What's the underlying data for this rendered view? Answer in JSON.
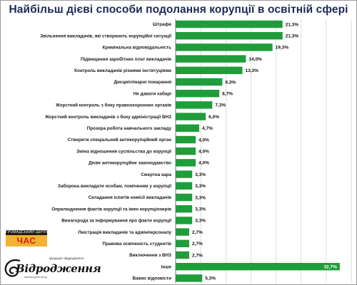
{
  "title": "Найбільш дієві способи подолання корупції в освітній сфері",
  "colors": {
    "bar": "#1f9d3a",
    "grid": "#c8c8c8",
    "title": "#1d2a55",
    "inner_label": "#ffffff"
  },
  "chart_data": {
    "type": "bar",
    "orientation": "horizontal",
    "title": "Найбільш дієві способи подолання корупції в освітній сфері",
    "value_suffix": "%",
    "decimal_separator": ",",
    "xlim": [
      0,
      35
    ],
    "grid": true,
    "categories": [
      "Штрафи",
      "Звільнення викладачів, які створюють корупційні ситуації",
      "Кримінальна відповідальність",
      "Підвищення заробітних плат викладачів",
      "Контроль викладачів різними інституціями",
      "Дисциплінарні покарання",
      "Не давати хабарі",
      "Жорсткий контроль з боку правоохоронних органів",
      "Жорсткий контроль викладачів з боку адміністрації ВНЗ",
      "Прозора робота навчального закладу",
      "Створити спеціальний антикорупційний орган",
      "Зміна відношення суспільства до корупції",
      "Дієве антикорупційне законодавство",
      "Смертна кара",
      "Заборона викладати особам, поміченим у корупції",
      "Складання іспитів комісії викладачів",
      "Оприлюднення фактів корупції та імен корупціонерів",
      "Винагорода за інформування про факти корупції",
      "Люстрація викладачів та адмінперсоналу",
      "Правова освіченість студентів",
      "Виключення з ВНЗ",
      "Інше",
      "Важко відповісти"
    ],
    "values": [
      21.3,
      21.3,
      19.3,
      14.0,
      13.3,
      9.3,
      8.7,
      7.3,
      6.0,
      4.7,
      4.0,
      4.0,
      4.0,
      3.3,
      3.3,
      3.3,
      3.3,
      3.3,
      2.7,
      2.7,
      2.7,
      32.7,
      5.3
    ],
    "value_labels": [
      "21,3%",
      "21,3%",
      "19,3%",
      "14,0%",
      "13,3%",
      "9,3%",
      "8,7%",
      "7,3%",
      "6,0%",
      "4,7%",
      "4,0%",
      "4,0%",
      "4,0%",
      "3,3%",
      "3,3%",
      "3,3%",
      "3,3%",
      "3,3%",
      "2,7%",
      "2,7%",
      "2,7%",
      "32,7%",
      "5,3%"
    ]
  },
  "logos": {
    "chas": {
      "top_text": "ГРОМАДСЬКИЙ ЦЕНТР",
      "word": "ЧАС"
    },
    "vidrodzhennia": {
      "small_text": "фундація «Відродження»",
      "script": "Відродження",
      "tagline": "міжнародний фонд"
    }
  }
}
